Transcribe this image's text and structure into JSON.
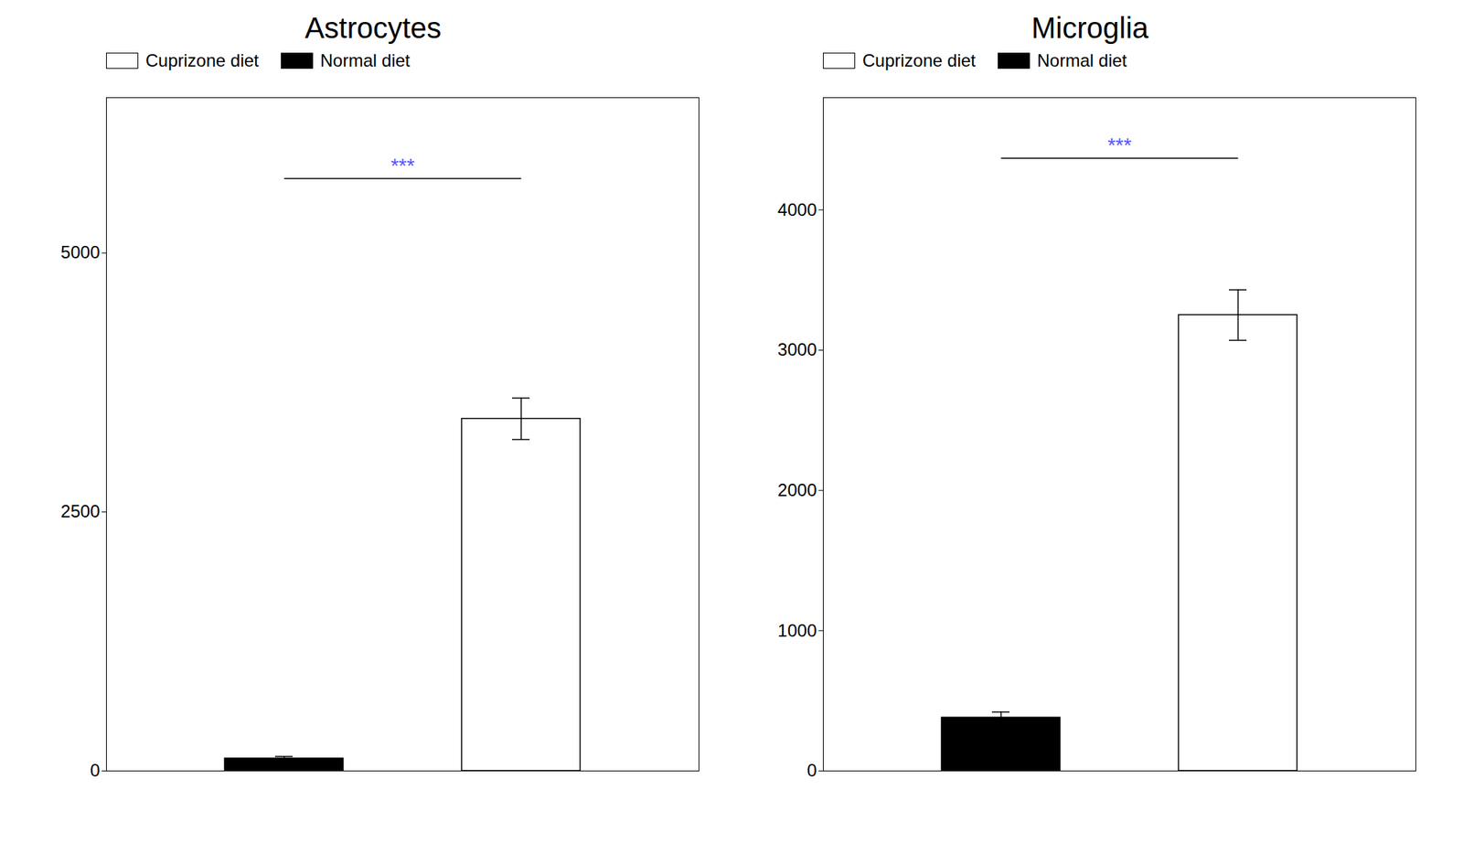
{
  "chart_data": [
    {
      "type": "bar",
      "title": "Astrocytes",
      "categories": [
        null,
        null
      ],
      "series": [
        {
          "name": "Cuprizone diet",
          "color": "#ffffff",
          "values": [
            null,
            3400
          ],
          "errors": [
            null,
            200
          ]
        },
        {
          "name": "Normal diet",
          "color": "#000000",
          "values": [
            120,
            null
          ],
          "errors": [
            20,
            null
          ]
        }
      ],
      "ylim": [
        0,
        6500
      ],
      "yticks": [
        0,
        2500,
        5000
      ],
      "legend": "upper left",
      "annotations": [
        {
          "text": "***",
          "y": 5720,
          "color": "#5555ff"
        }
      ]
    },
    {
      "type": "bar",
      "title": "Microglia",
      "categories": [
        null,
        null
      ],
      "series": [
        {
          "name": "Cuprizone diet",
          "color": "#ffffff",
          "values": [
            null,
            3250
          ],
          "errors": [
            null,
            180
          ]
        },
        {
          "name": "Normal diet",
          "color": "#000000",
          "values": [
            380,
            null
          ],
          "errors": [
            40,
            null
          ]
        }
      ],
      "ylim": [
        0,
        4800
      ],
      "yticks": [
        0,
        1000,
        2000,
        3000,
        4000
      ],
      "legend": "upper left",
      "annotations": [
        {
          "text": "***",
          "y": 4368,
          "color": "#5555ff"
        }
      ]
    }
  ]
}
